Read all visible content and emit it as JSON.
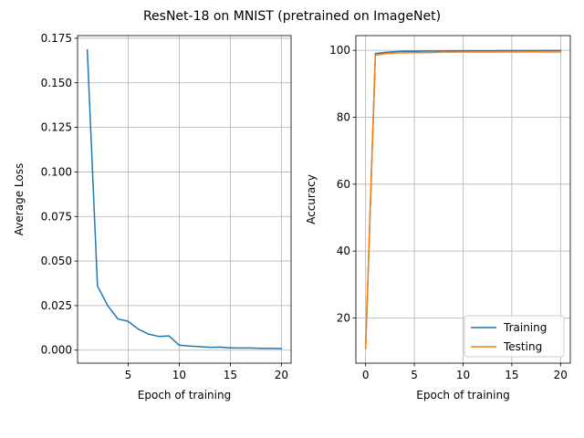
{
  "figure": {
    "title": "ResNet-18 on MNIST (pretrained on ImageNet)"
  },
  "chart_data": [
    {
      "type": "line",
      "xlabel": "Epoch of training",
      "ylabel": "Average Loss",
      "xlim": [
        0.05,
        20.95
      ],
      "ylim": [
        -0.0073,
        0.1765
      ],
      "xticks": [
        5,
        10,
        15,
        20
      ],
      "xtick_labels": [
        "5",
        "10",
        "15",
        "20"
      ],
      "yticks": [
        0.0,
        0.025,
        0.05,
        0.075,
        0.1,
        0.125,
        0.15,
        0.175
      ],
      "ytick_labels": [
        "0.000",
        "0.025",
        "0.050",
        "0.075",
        "0.100",
        "0.125",
        "0.150",
        "0.175"
      ],
      "grid": true,
      "series": [
        {
          "color": "#1f77b4",
          "x": [
            1,
            2,
            3,
            4,
            5,
            6,
            7,
            8,
            9,
            10,
            11,
            12,
            13,
            14,
            15,
            16,
            17,
            18,
            19,
            20
          ],
          "values": [
            0.1685,
            0.036,
            0.025,
            0.0175,
            0.0162,
            0.0118,
            0.009,
            0.0077,
            0.008,
            0.0028,
            0.0023,
            0.002,
            0.0016,
            0.0017,
            0.0013,
            0.0012,
            0.0012,
            0.001,
            0.001,
            0.0009
          ]
        }
      ]
    },
    {
      "type": "line",
      "xlabel": "Epoch of training",
      "ylabel": "Accuracy",
      "xlim": [
        -1.0,
        21.0
      ],
      "ylim": [
        6.5,
        104.4
      ],
      "xticks": [
        0,
        5,
        10,
        15,
        20
      ],
      "xtick_labels": [
        "0",
        "5",
        "10",
        "15",
        "20"
      ],
      "yticks": [
        20,
        40,
        60,
        80,
        100
      ],
      "ytick_labels": [
        "20",
        "40",
        "60",
        "80",
        "100"
      ],
      "grid": true,
      "legend": "lower-right",
      "series": [
        {
          "name": "Training",
          "color": "#1f77b4",
          "x": [
            0,
            1,
            2,
            3,
            4,
            5,
            6,
            7,
            8,
            9,
            10,
            11,
            12,
            13,
            14,
            15,
            16,
            17,
            18,
            19,
            20
          ],
          "values": [
            11.0,
            99.0,
            99.4,
            99.6,
            99.7,
            99.7,
            99.75,
            99.78,
            99.8,
            99.82,
            99.85,
            99.86,
            99.88,
            99.88,
            99.9,
            99.9,
            99.9,
            99.9,
            99.92,
            99.92,
            99.92
          ]
        },
        {
          "name": "Testing",
          "color": "#ff7f0e",
          "x": [
            0,
            1,
            2,
            3,
            4,
            5,
            6,
            7,
            8,
            9,
            10,
            11,
            12,
            13,
            14,
            15,
            16,
            17,
            18,
            19,
            20
          ],
          "values": [
            11.2,
            98.5,
            99.0,
            99.2,
            99.25,
            99.3,
            99.3,
            99.35,
            99.5,
            99.45,
            99.5,
            99.5,
            99.5,
            99.5,
            99.5,
            99.5,
            99.5,
            99.55,
            99.5,
            99.5,
            99.5
          ]
        }
      ]
    }
  ]
}
